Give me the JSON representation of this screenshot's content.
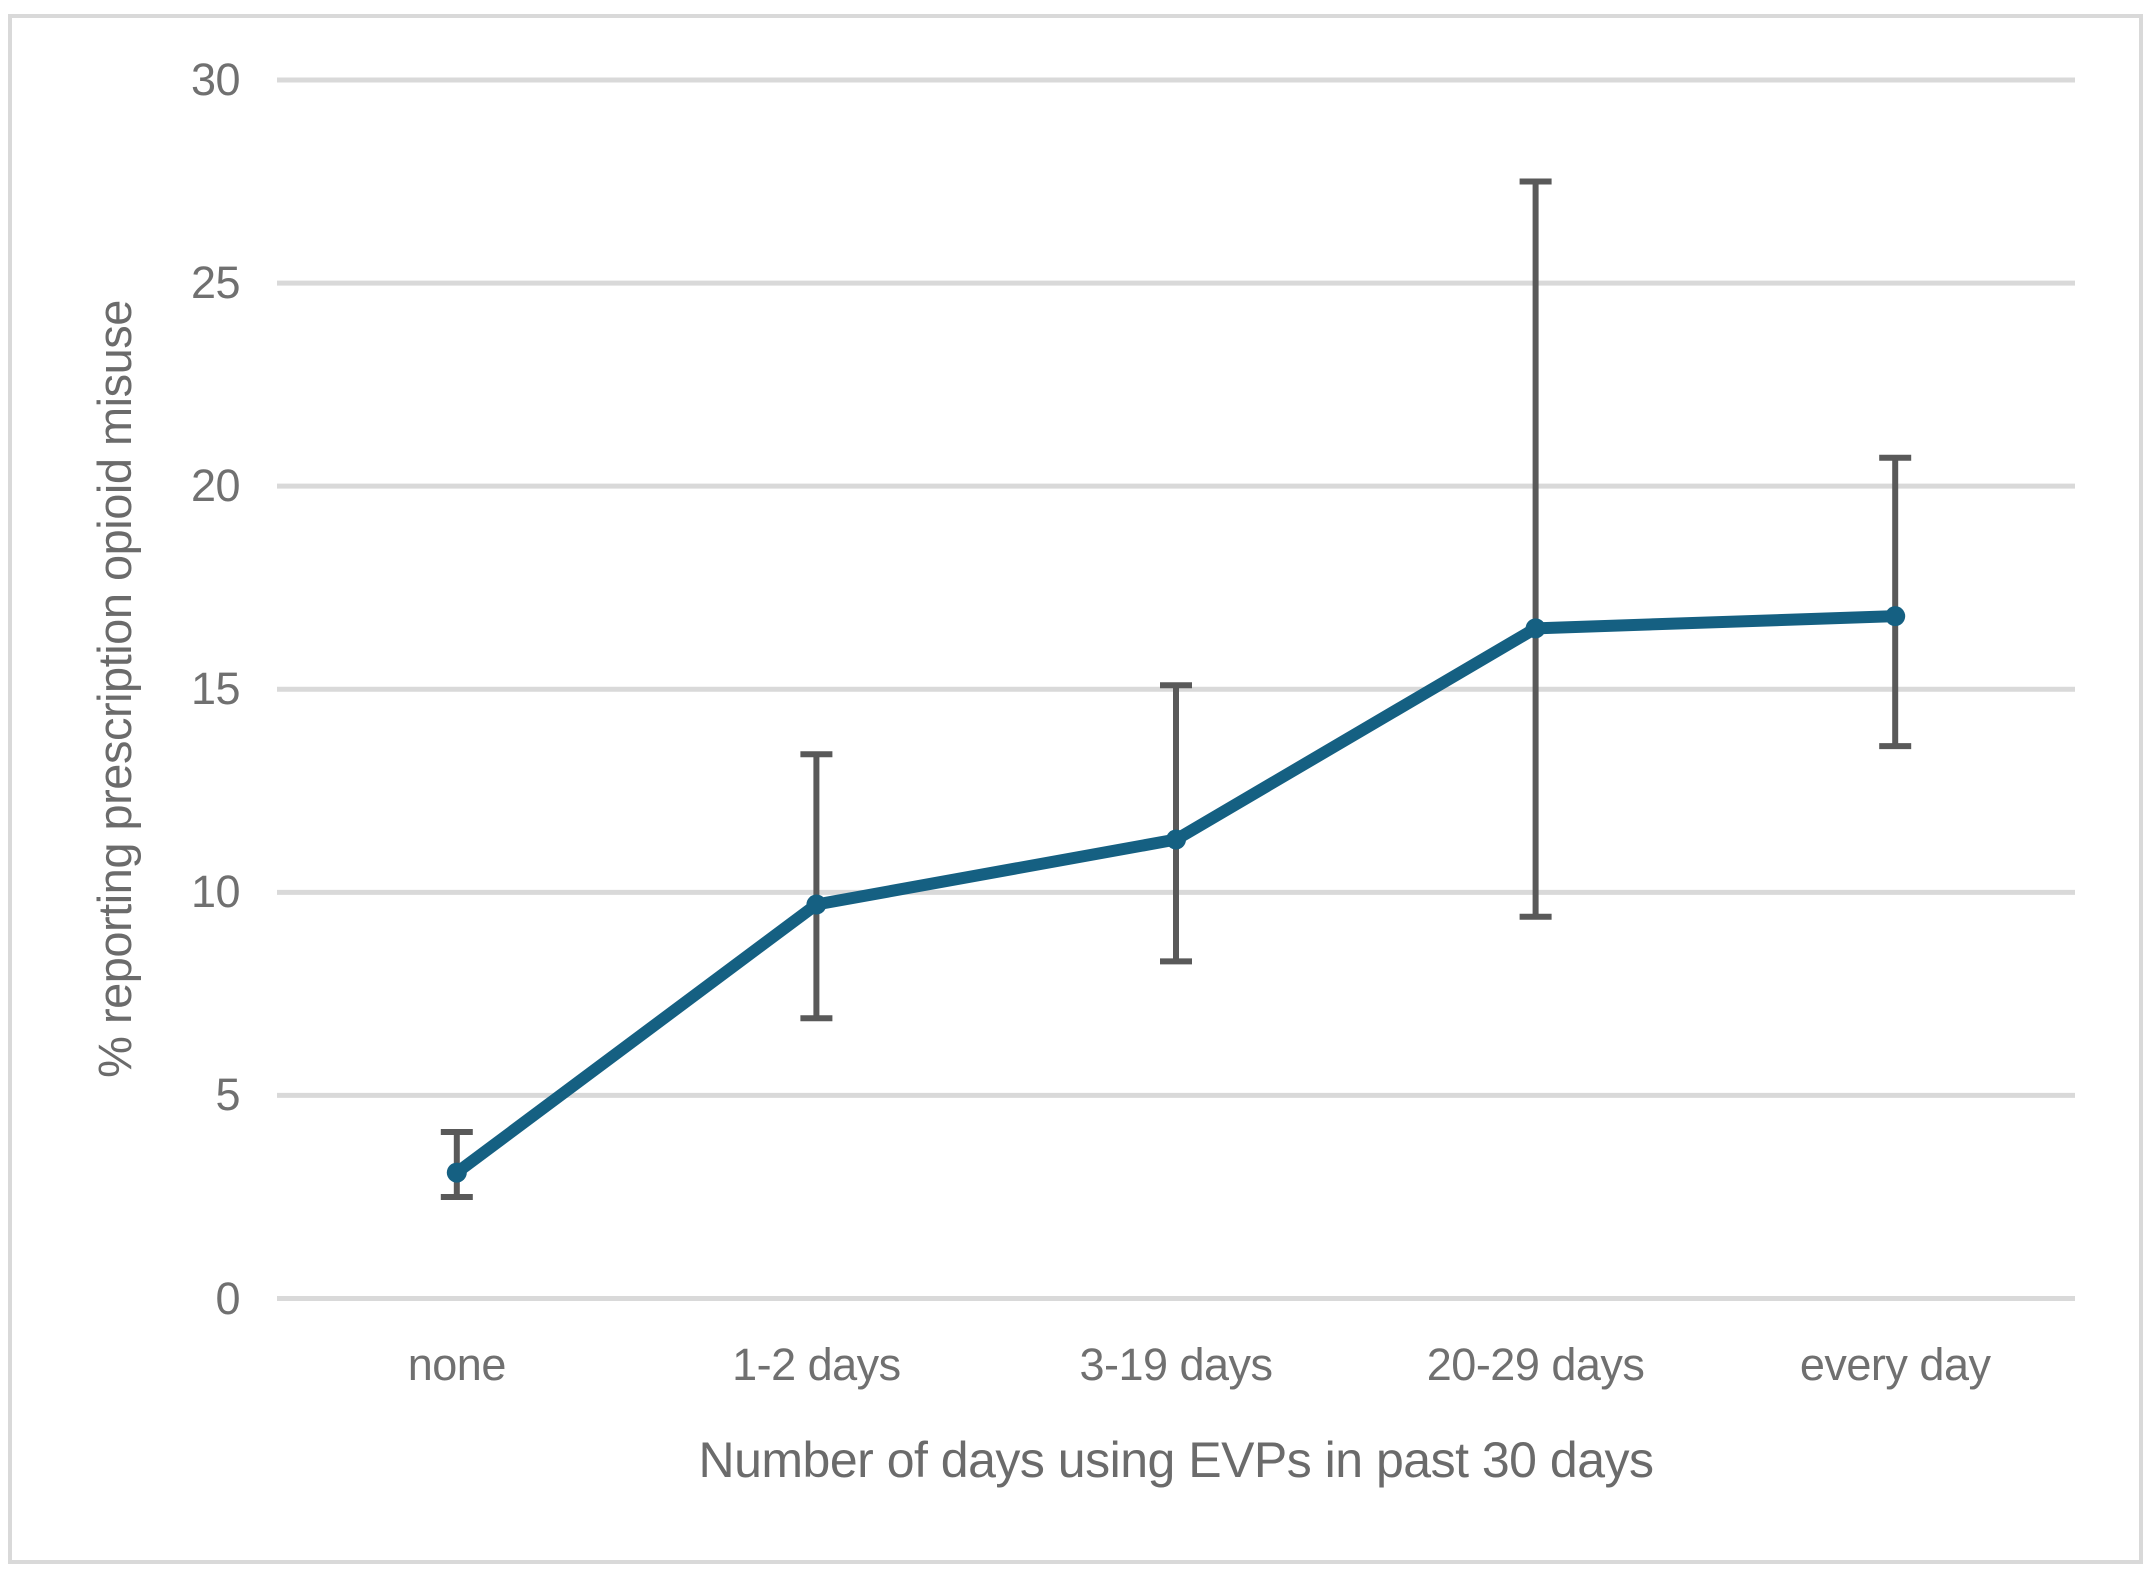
{
  "chart_data": {
    "type": "line",
    "title": "",
    "xlabel": "Number of days using EVPs in past 30 days",
    "ylabel": "% reporting prescription opioid misuse",
    "categories": [
      "none",
      "1-2 days",
      "3-19 days",
      "20-29 days",
      "every day"
    ],
    "series": [
      {
        "name": "% reporting prescription opioid misuse",
        "values": [
          3.1,
          9.7,
          11.3,
          16.5,
          16.8
        ],
        "error_low": [
          2.5,
          6.9,
          8.3,
          9.4,
          13.6
        ],
        "error_high": [
          4.1,
          13.4,
          15.1,
          27.5,
          20.7
        ]
      }
    ],
    "ylim": [
      0,
      30
    ],
    "yticks": [
      0,
      5,
      10,
      15,
      20,
      25,
      30
    ],
    "grid": "horizontal-only",
    "legend": "none",
    "colors": {
      "line": "#156082",
      "error_bar": "#595959",
      "gridline": "#D9D9D9",
      "border": "#D9D9D9",
      "text": "#707070"
    }
  }
}
